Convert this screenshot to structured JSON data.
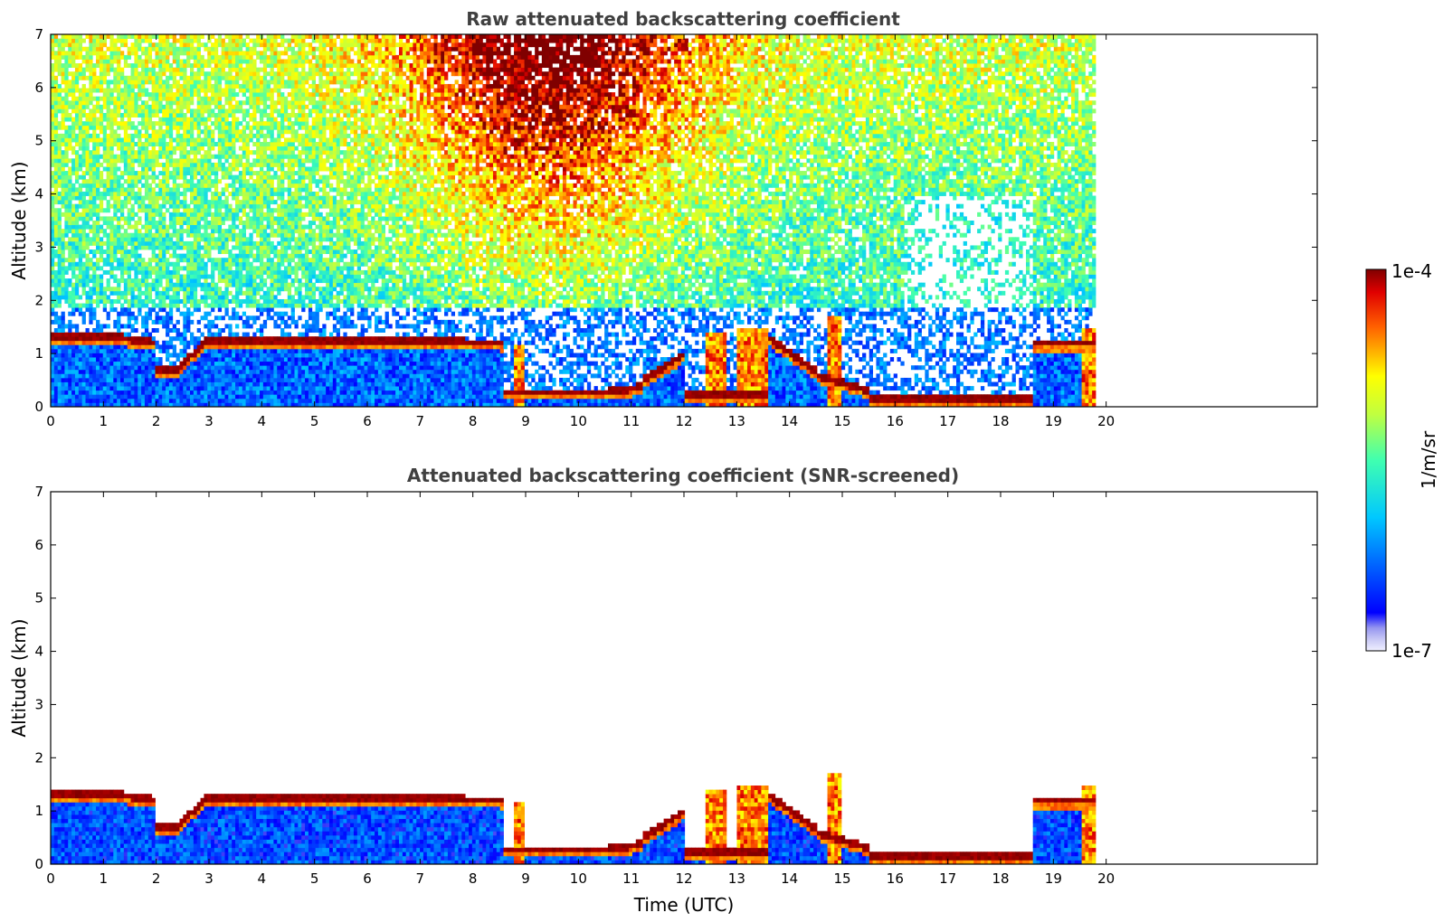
{
  "chart_data": [
    {
      "type": "heatmap",
      "title": "Raw attenuated backscattering coefficient",
      "ylabel": "Altitude (km)",
      "xlabel": "",
      "xlim": [
        0,
        24
      ],
      "ylim": [
        0,
        7
      ],
      "xticks": [
        "0",
        "1",
        "2",
        "3",
        "4",
        "5",
        "6",
        "7",
        "8",
        "9",
        "10",
        "11",
        "12",
        "13",
        "14",
        "15",
        "16",
        "17",
        "18",
        "19",
        "20"
      ],
      "yticks": [
        "0",
        "1",
        "2",
        "3",
        "4",
        "5",
        "6",
        "7"
      ],
      "data_end_time": 19.8
    },
    {
      "type": "heatmap",
      "title": "Attenuated backscattering coefficient (SNR-screened)",
      "ylabel": "Altitude (km)",
      "xlabel": "Time (UTC)",
      "xlim": [
        0,
        24
      ],
      "ylim": [
        0,
        7
      ],
      "xticks": [
        "0",
        "1",
        "2",
        "3",
        "4",
        "5",
        "6",
        "7",
        "8",
        "9",
        "10",
        "11",
        "12",
        "13",
        "14",
        "15",
        "16",
        "17",
        "18",
        "19",
        "20"
      ],
      "yticks": [
        "0",
        "1",
        "2",
        "3",
        "4",
        "5",
        "6",
        "7"
      ],
      "data_end_time": 19.8
    }
  ],
  "colorbar": {
    "label": "1/m/sr",
    "max_label": "1e-4",
    "min_label": "1e-7",
    "scale": "log",
    "colormap": "jet",
    "low_colors": [
      "#f0f0ff",
      "#c8c8f5",
      "#9696f0",
      "#0000ff"
    ]
  }
}
